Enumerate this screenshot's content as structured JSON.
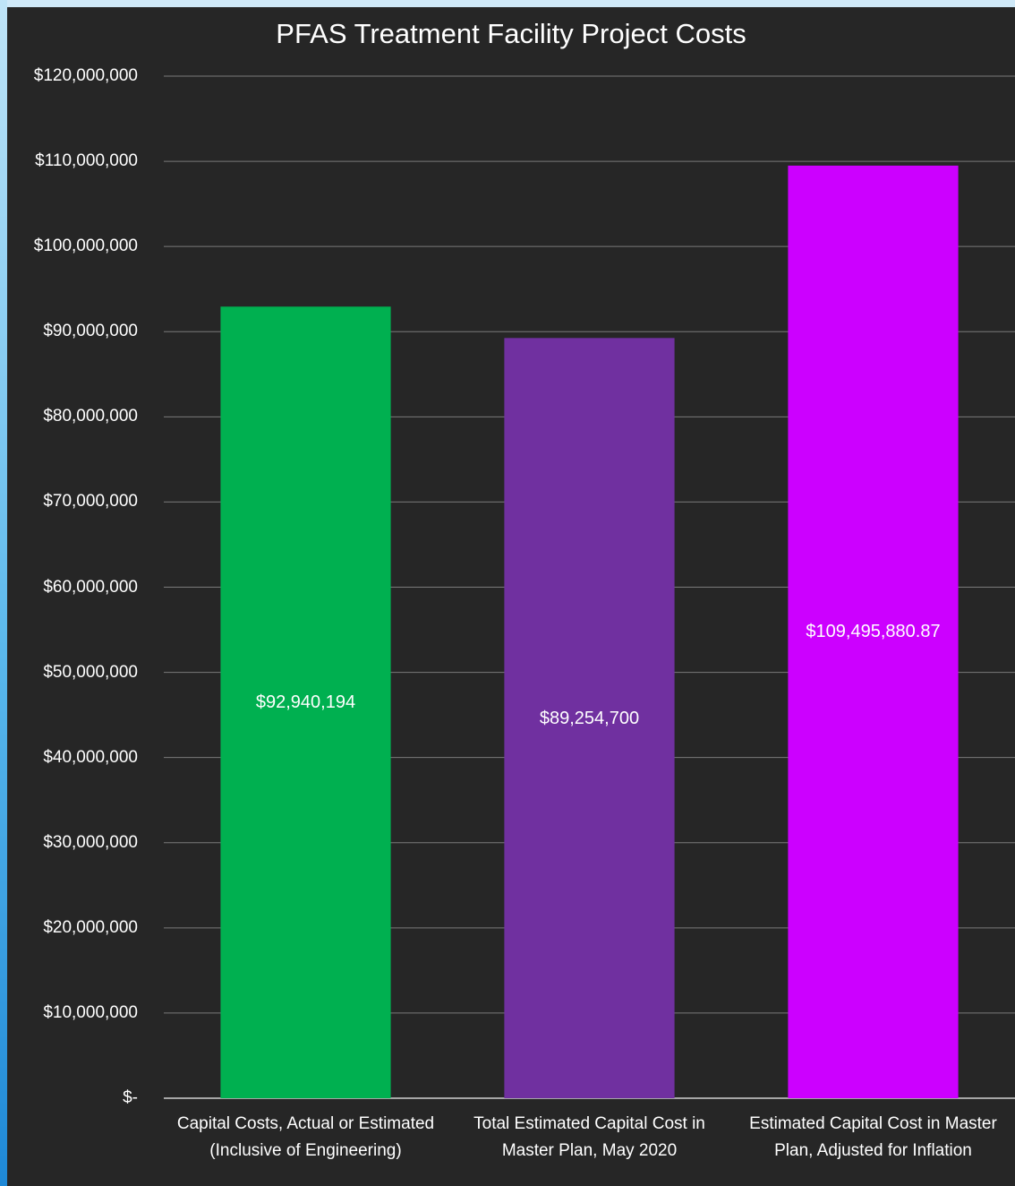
{
  "chart_data": {
    "type": "bar",
    "title": "PFAS Treatment Facility Project Costs",
    "xlabel": "",
    "ylabel": "",
    "ylim": [
      0,
      120000000
    ],
    "y_ticks": [
      0,
      10000000,
      20000000,
      30000000,
      40000000,
      50000000,
      60000000,
      70000000,
      80000000,
      90000000,
      100000000,
      110000000,
      120000000
    ],
    "y_tick_labels": [
      "$-",
      "$10,000,000",
      "$20,000,000",
      "$30,000,000",
      "$40,000,000",
      "$50,000,000",
      "$60,000,000",
      "$70,000,000",
      "$80,000,000",
      "$90,000,000",
      "$100,000,000",
      "$110,000,000",
      "$120,000,000"
    ],
    "grid": true,
    "legend": "none",
    "categories": [
      "Capital Costs, Actual or Estimated (Inclusive of Engineering)",
      "Total Estimated Capital Cost in Master Plan, May 2020",
      "Estimated Capital Cost in Master Plan, Adjusted for Inflation"
    ],
    "values": [
      92940194,
      89254700,
      109495880.87
    ],
    "data_labels": [
      "$92,940,194",
      "$89,254,700",
      "$109,495,880.87"
    ],
    "colors": [
      "#00b050",
      "#7030a0",
      "#cc00ff"
    ]
  }
}
